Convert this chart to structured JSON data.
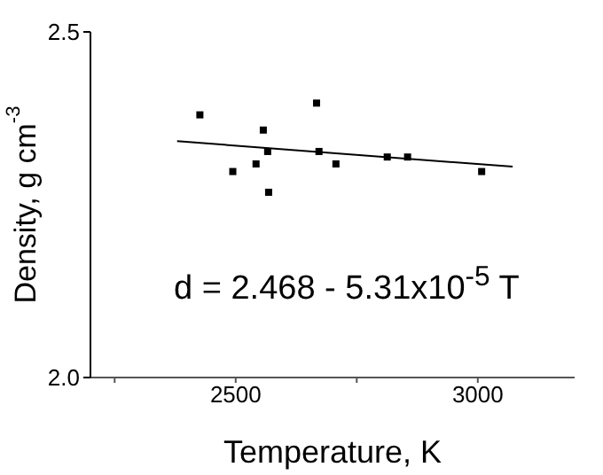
{
  "chart_data": {
    "type": "scatter",
    "xlabel": "Temperature, K",
    "ylabel": "Density, g cm$^{-3}$",
    "xlim": [
      2200,
      3200
    ],
    "xticks": [
      {
        "value": 2250,
        "label": null
      },
      2500,
      {
        "value": 2750,
        "label": null
      },
      3000
    ],
    "ylim": [
      2.0,
      2.5
    ],
    "yticks": [
      {
        "value": 2.0,
        "label": "2.0"
      },
      2.5
    ],
    "annotations": [
      "d = 2.468 - 5.31x10$^{-5}$ T"
    ],
    "series": [
      {
        "color": "#000000",
        "marker": "square",
        "x": [
          2426,
          2494,
          2542,
          2557,
          2566,
          2568,
          2667,
          2672,
          2707,
          2813,
          2855,
          3008
        ],
        "values": [
          2.38,
          2.298,
          2.309,
          2.358,
          2.327,
          2.268,
          2.397,
          2.327,
          2.309,
          2.319,
          2.319,
          2.298
        ]
      },
      {
        "type": "line",
        "color": "#000000",
        "marker": "none",
        "x": [
          2379,
          3072
        ],
        "values": [
          2.342,
          2.305
        ]
      }
    ]
  }
}
